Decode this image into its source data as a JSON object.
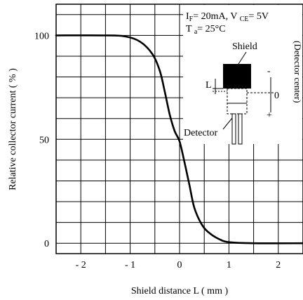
{
  "chart_data": {
    "type": "line",
    "xlabel": "Shield distance L ( mm )",
    "ylabel": "Relative collector current ( % )",
    "xlim": [
      -2.5,
      2.5
    ],
    "ylim": [
      -5,
      115
    ],
    "x_ticks": [
      {
        "value": -2,
        "label": "- 2"
      },
      {
        "value": -1,
        "label": "- 1"
      },
      {
        "value": 0,
        "label": "0"
      },
      {
        "value": 1,
        "label": "1"
      },
      {
        "value": 2,
        "label": "2"
      }
    ],
    "y_ticks": [
      {
        "value": 0,
        "label": "0"
      },
      {
        "value": 50,
        "label": "50"
      },
      {
        "value": 100,
        "label": "100"
      }
    ],
    "grid": true,
    "series": [
      {
        "x": [
          -2.5,
          -1.5,
          -1.1,
          -0.8,
          -0.55,
          -0.4,
          -0.3,
          -0.2,
          -0.1,
          0,
          0.1,
          0.2,
          0.3,
          0.45,
          0.6,
          0.8,
          1.0,
          1.5,
          2.5
        ],
        "y": [
          100,
          100,
          99.5,
          97,
          91,
          83,
          73,
          62,
          54,
          49,
          39,
          28,
          17,
          9,
          5,
          2,
          0.5,
          0,
          0
        ]
      }
    ],
    "annotations": {
      "conditions_line1_a": "I",
      "conditions_line1_sub_a": "F",
      "conditions_line1_b": "= 20mA, V ",
      "conditions_line1_sub_b": "CE",
      "conditions_line1_c": "= 5V",
      "conditions_line2_a": "T ",
      "conditions_line2_sub": "a",
      "conditions_line2_b": "= 25°C",
      "shield_label": "Shield",
      "detector_label": "Detector",
      "L_label": "L",
      "minus_label": "-",
      "plus_label": "+",
      "zero_label": "0",
      "detector_center_label": "(Detector center)"
    }
  }
}
